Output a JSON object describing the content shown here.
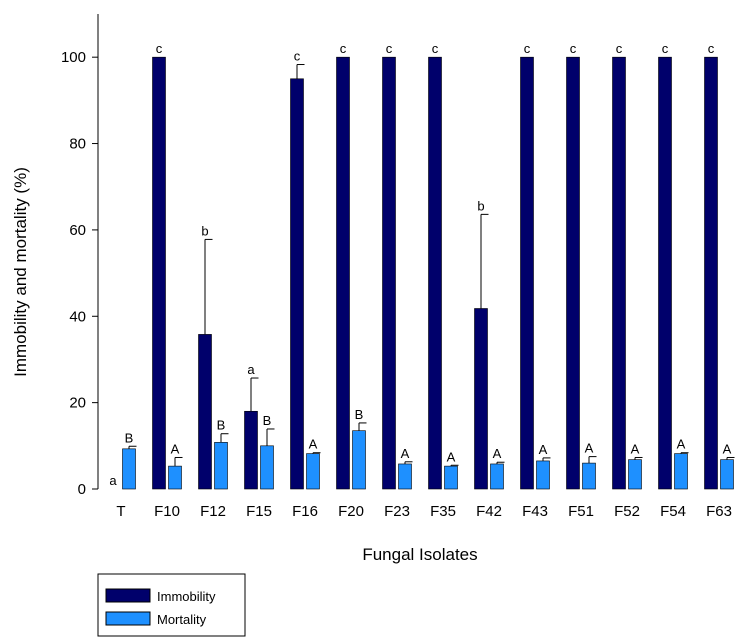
{
  "chart_data": {
    "type": "bar",
    "xlabel": "Fungal Isolates",
    "ylabel": "Immobility and mortality (%)",
    "ylim": [
      0,
      110
    ],
    "yticks": [
      0,
      20,
      40,
      60,
      80,
      100
    ],
    "categories": [
      "T",
      "F10",
      "F12",
      "F15",
      "F16",
      "F20",
      "F23",
      "F35",
      "F42",
      "F43",
      "F51",
      "F52",
      "F54",
      "F63"
    ],
    "series": [
      {
        "name": "Immobility",
        "color": "#00006b",
        "values": [
          0,
          100,
          35.8,
          18,
          95,
          100,
          100,
          100,
          41.8,
          100,
          100,
          100,
          100,
          100
        ],
        "errors": [
          0,
          0,
          22,
          7.7,
          3.3,
          0,
          0,
          0,
          21.8,
          0,
          0,
          0,
          0,
          0
        ],
        "labels": [
          "a",
          "c",
          "b",
          "a",
          "c",
          "c",
          "c",
          "c",
          "b",
          "c",
          "c",
          "c",
          "c",
          "c"
        ]
      },
      {
        "name": "Mortality",
        "color": "#1e90ff",
        "values": [
          9.3,
          5.3,
          10.8,
          10,
          8.2,
          13.5,
          5.8,
          5.3,
          5.8,
          6.5,
          6,
          6.8,
          8.2,
          6.8
        ],
        "errors": [
          0.6,
          2,
          2,
          3.9,
          0.2,
          1.8,
          0.5,
          0.2,
          0.4,
          0.7,
          1.5,
          0.5,
          0.2,
          0.5
        ],
        "labels": [
          "B",
          "A",
          "B",
          "B",
          "A",
          "B",
          "A",
          "A",
          "A",
          "A",
          "A",
          "A",
          "A",
          "A"
        ]
      }
    ],
    "legend": {
      "position": "bottom-left"
    }
  }
}
